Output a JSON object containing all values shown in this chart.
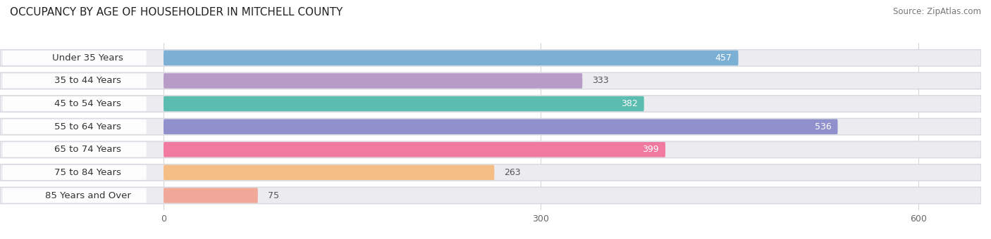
{
  "title": "OCCUPANCY BY AGE OF HOUSEHOLDER IN MITCHELL COUNTY",
  "source": "Source: ZipAtlas.com",
  "categories": [
    "Under 35 Years",
    "35 to 44 Years",
    "45 to 54 Years",
    "55 to 64 Years",
    "65 to 74 Years",
    "75 to 84 Years",
    "85 Years and Over"
  ],
  "values": [
    457,
    333,
    382,
    536,
    399,
    263,
    75
  ],
  "bar_colors": [
    "#7BAFD4",
    "#B89CC8",
    "#5BBCB0",
    "#9090CC",
    "#F07AA0",
    "#F5BE85",
    "#F0A898"
  ],
  "bar_bg_color": "#EBEBF0",
  "label_pill_color": "#FFFFFF",
  "xlim_data": 650,
  "xticks": [
    0,
    300,
    600
  ],
  "title_fontsize": 11,
  "source_fontsize": 8.5,
  "label_fontsize": 9.5,
  "value_fontsize": 9,
  "bar_height": 0.72,
  "background_color": "#FFFFFF",
  "value_colors": [
    true,
    false,
    true,
    true,
    true,
    false,
    false
  ],
  "note_value_white": [
    457,
    382,
    536,
    399
  ]
}
